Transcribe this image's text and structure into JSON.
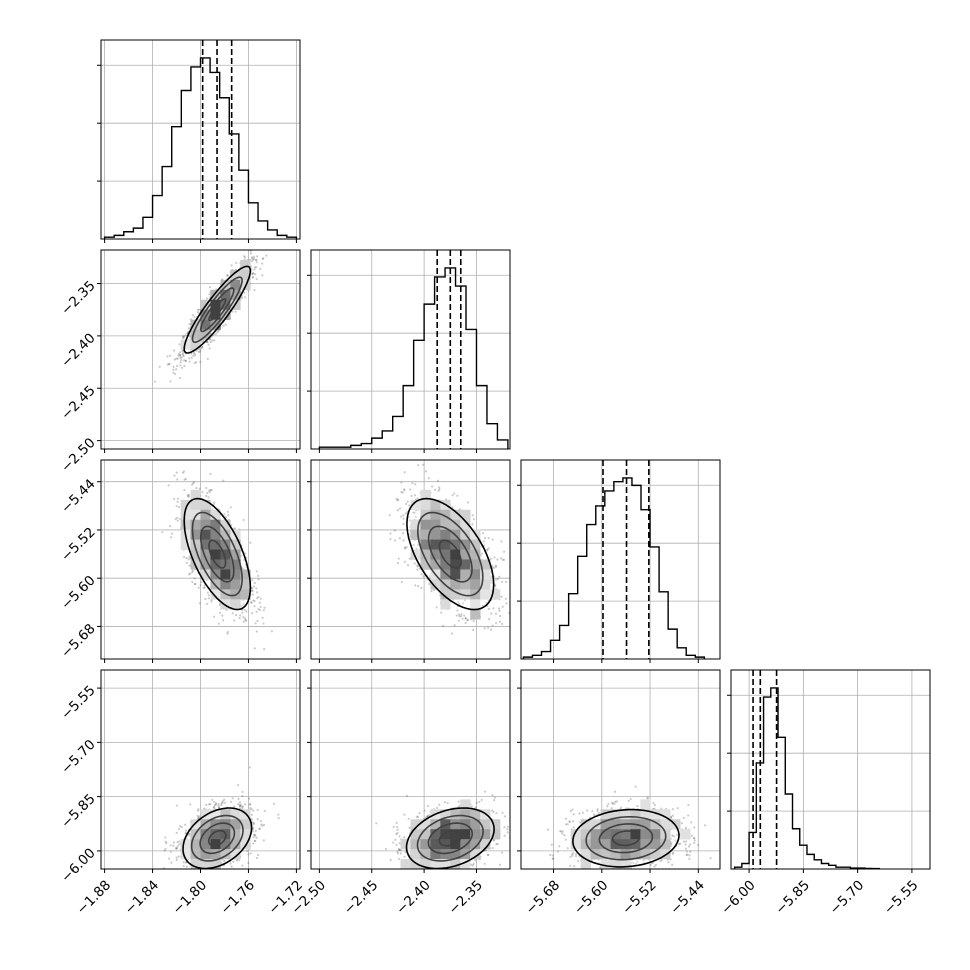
{
  "chart_data": {
    "type": "corner",
    "grid": true,
    "n_params": 4,
    "axes": [
      {
        "lim": [
          -1.883,
          -1.717
        ],
        "ticks": [
          -1.88,
          -1.84,
          -1.8,
          -1.76,
          -1.72
        ],
        "tick_labels": [
          "−1.88",
          "−1.84",
          "−1.80",
          "−1.76",
          "−1.72"
        ]
      },
      {
        "lim": [
          -2.508,
          -2.318
        ],
        "ticks": [
          -2.5,
          -2.45,
          -2.4,
          -2.35
        ],
        "tick_labels": [
          "−2.50",
          "−2.45",
          "−2.40",
          "−2.35"
        ]
      },
      {
        "lim": [
          -5.734,
          -5.404
        ],
        "ticks": [
          -5.68,
          -5.6,
          -5.52,
          -5.44
        ],
        "tick_labels": [
          "−5.68",
          "−5.60",
          "−5.52",
          "−5.44"
        ]
      },
      {
        "lim": [
          -6.05,
          -5.5
        ],
        "ticks": [
          -6.0,
          -5.85,
          -5.7,
          -5.55
        ],
        "tick_labels": [
          "−6.00",
          "−5.85",
          "−5.70",
          "−5.55"
        ]
      }
    ],
    "histograms": [
      {
        "param": 0,
        "bins": [
          -1.88,
          -1.872,
          -1.864,
          -1.856,
          -1.848,
          -1.84,
          -1.832,
          -1.824,
          -1.816,
          -1.808,
          -1.8,
          -1.792,
          -1.784,
          -1.776,
          -1.768,
          -1.76,
          -1.752,
          -1.744,
          -1.736,
          -1.728,
          -1.72
        ],
        "counts": [
          1,
          2,
          4,
          6,
          12,
          24,
          40,
          62,
          82,
          95,
          100,
          92,
          78,
          58,
          38,
          20,
          10,
          5,
          2,
          1
        ],
        "quantiles": [
          -1.7982,
          -1.7862,
          -1.774
        ]
      },
      {
        "param": 1,
        "bins": [
          -2.5,
          -2.49,
          -2.48,
          -2.47,
          -2.46,
          -2.45,
          -2.44,
          -2.43,
          -2.42,
          -2.41,
          -2.4,
          -2.39,
          -2.38,
          -2.37,
          -2.36,
          -2.35,
          -2.34,
          -2.33,
          -2.32
        ],
        "counts": [
          1,
          1,
          1,
          2,
          3,
          6,
          10,
          18,
          35,
          60,
          80,
          95,
          100,
          90,
          66,
          35,
          14,
          5
        ],
        "quantiles": [
          -2.3875,
          -2.375,
          -2.365
        ]
      },
      {
        "param": 2,
        "bins": [
          -5.73,
          -5.715,
          -5.7,
          -5.685,
          -5.67,
          -5.655,
          -5.64,
          -5.625,
          -5.61,
          -5.595,
          -5.58,
          -5.565,
          -5.55,
          -5.535,
          -5.52,
          -5.505,
          -5.49,
          -5.475,
          -5.46,
          -5.445,
          -5.43
        ],
        "counts": [
          1,
          2,
          4,
          10,
          18,
          35,
          55,
          72,
          82,
          90,
          95,
          97,
          93,
          80,
          60,
          36,
          16,
          6,
          2,
          1
        ],
        "quantiles": [
          -5.598,
          -5.559,
          -5.522
        ]
      },
      {
        "param": 3,
        "bins": [
          -6.04,
          -6.02,
          -6.0,
          -5.98,
          -5.96,
          -5.94,
          -5.92,
          -5.9,
          -5.88,
          -5.86,
          -5.84,
          -5.82,
          -5.8,
          -5.78,
          -5.76,
          -5.74,
          -5.72,
          -5.7,
          -5.68,
          -5.66,
          -5.64
        ],
        "counts": [
          1,
          3,
          20,
          58,
          94,
          99,
          72,
          41,
          22,
          13,
          8,
          5,
          3,
          2,
          1,
          1,
          0.5,
          0.5,
          0.3,
          0.2
        ],
        "quantiles": [
          -5.989,
          -5.969,
          -5.924
        ]
      }
    ],
    "density_2d": [
      {
        "x_param": 0,
        "y_param": 1,
        "center": [
          -1.786,
          -2.375
        ],
        "sx": 0.012,
        "sy": 0.018,
        "rho": 0.9,
        "n_points": 1500,
        "spread": 1.15
      },
      {
        "x_param": 0,
        "y_param": 2,
        "center": [
          -1.786,
          -5.56
        ],
        "sx": 0.012,
        "sy": 0.04,
        "rho": -0.6,
        "n_points": 1500,
        "spread": 1.15
      },
      {
        "x_param": 1,
        "y_param": 2,
        "center": [
          -2.375,
          -5.56
        ],
        "sx": 0.018,
        "sy": 0.04,
        "rho": -0.55,
        "n_points": 1500,
        "spread": 1.15
      },
      {
        "x_param": 0,
        "y_param": 3,
        "center": [
          -1.786,
          -5.965
        ],
        "sx": 0.013,
        "sy": 0.038,
        "rho": 0.35,
        "n_points": 1500,
        "spread": 1.1
      },
      {
        "x_param": 1,
        "y_param": 3,
        "center": [
          -2.375,
          -5.965
        ],
        "sx": 0.019,
        "sy": 0.038,
        "rho": 0.3,
        "n_points": 1500,
        "spread": 1.1
      },
      {
        "x_param": 2,
        "y_param": 3,
        "center": [
          -5.56,
          -5.965
        ],
        "sx": 0.04,
        "sy": 0.036,
        "rho": 0.1,
        "n_points": 1500,
        "spread": 1.1
      }
    ]
  }
}
